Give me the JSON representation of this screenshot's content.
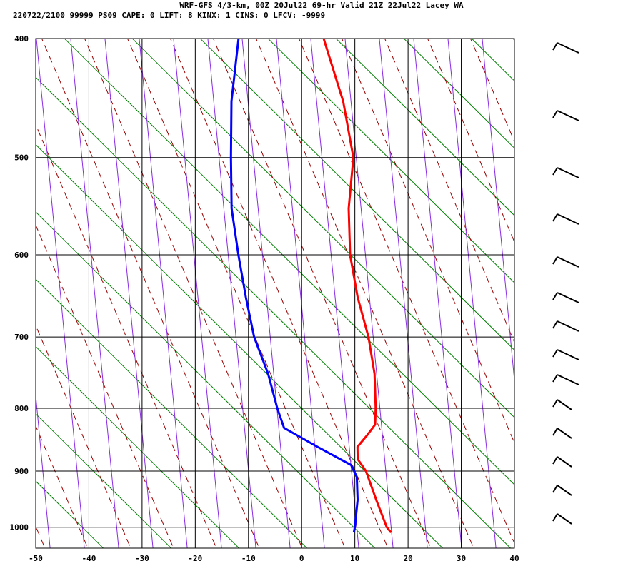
{
  "header": {
    "line1": "WRF-GFS 4/3-km, 00Z 20Jul22 69-hr Valid 21Z 22Jul22 Lacey WA",
    "line2": "220722/2100 99999  PS09    CAPE:     0 LIFT:     8 KINX:     1 CINS:     0 LFCV: -9999"
  },
  "colors": {
    "temperature": "#ff0000",
    "dewpoint": "#0000ff",
    "isotherm": "#000000",
    "dry_adiabat": "#008000",
    "moist_adiabat": "#990000",
    "mixing_ratio": "#8a2be2",
    "wind_barb": "#000000"
  },
  "chart_data": {
    "type": "line",
    "title": "WRF-GFS 4/3-km, 00Z 20Jul22 69-hr Valid 21Z 22Jul22 Lacey WA",
    "xlim": [
      -50,
      40
    ],
    "ylim": [
      1040,
      400
    ],
    "y_scale": "log",
    "grid": true,
    "x_ticks": [
      "-50",
      "-40",
      "-30",
      "-20",
      "-10",
      "0",
      "10",
      "20",
      "30",
      "40"
    ],
    "y_ticks": [
      "400",
      "500",
      "600",
      "700",
      "800",
      "900",
      "1000"
    ],
    "series": [
      {
        "role": "temperature",
        "points": [
          [
            400,
            -14
          ],
          [
            450,
            -8
          ],
          [
            500,
            -4
          ],
          [
            550,
            -3
          ],
          [
            600,
            -1
          ],
          [
            650,
            2
          ],
          [
            700,
            5.5
          ],
          [
            750,
            8
          ],
          [
            800,
            9.5
          ],
          [
            825,
            10
          ],
          [
            840,
            9
          ],
          [
            860,
            7.5
          ],
          [
            880,
            8
          ],
          [
            900,
            10
          ],
          [
            950,
            13
          ],
          [
            1000,
            16
          ],
          [
            1010,
            17
          ]
        ]
      },
      {
        "role": "dewpoint",
        "points": [
          [
            400,
            -30
          ],
          [
            450,
            -29
          ],
          [
            500,
            -27
          ],
          [
            550,
            -25
          ],
          [
            600,
            -22
          ],
          [
            650,
            -19
          ],
          [
            700,
            -16
          ],
          [
            750,
            -12
          ],
          [
            800,
            -9
          ],
          [
            830,
            -7
          ],
          [
            860,
            0
          ],
          [
            890,
            7
          ],
          [
            910,
            8.5
          ],
          [
            950,
            9.5
          ],
          [
            1000,
            10
          ],
          [
            1010,
            10
          ]
        ]
      }
    ]
  }
}
